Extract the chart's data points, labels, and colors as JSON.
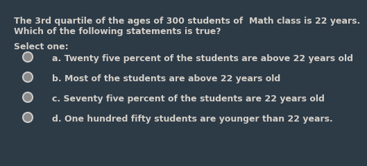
{
  "background_color": "#2d3b47",
  "text_color": "#d4cfc8",
  "title_line1": "The 3rd quartile of the ages of 300 students of  Math class is 22 years.",
  "title_line2": "Which of the following statements is true?",
  "select_label": "Select one:",
  "options": [
    "a. Twenty five percent of the students are above 22 years old",
    "b. Most of the students are above 22 years old",
    "c. Seventy five percent of the students are 22 years old",
    "d. One hundred fifty students are younger than 22 years."
  ],
  "bullet_fill_color": "#8a8a8a",
  "bullet_edge_color": "#cccccc",
  "title_fontsize": 9.0,
  "option_fontsize": 9.0,
  "select_fontsize": 9.0
}
